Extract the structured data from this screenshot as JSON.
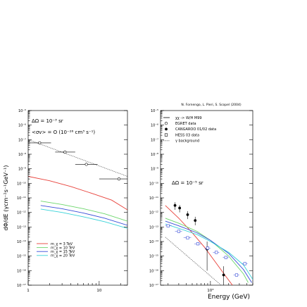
{
  "chart_data": [
    {
      "id": "left",
      "type": "line",
      "x_scale": "log",
      "y_scale": "log",
      "xlim": [
        1,
        25
      ],
      "ylim": [
        1e-17,
        1e-05
      ],
      "xticks": [
        {
          "v": 1,
          "label": "1"
        },
        {
          "v": 10,
          "label": "10"
        }
      ],
      "ylabel": "dΦ/dE (γcm⁻²s⁻¹GeV⁻¹)",
      "annotations": [
        "ΔΩ = 10⁻³ sr",
        "<σv> = O (10⁻²⁶ cm³ s⁻¹)"
      ],
      "legend_position": "bottom-left",
      "legend": [
        {
          "label": "m_χ = 3 TeV",
          "color": "#e8413a"
        },
        {
          "label": "m_χ = 10 TeV",
          "color": "#6cd66c"
        },
        {
          "label": "m_χ = 15 TeV",
          "color": "#3a4ed8"
        },
        {
          "label": "m_χ = 20 TeV",
          "color": "#38d2d8"
        }
      ],
      "series": [
        {
          "name": "m_χ = 3 TeV",
          "color": "#e8413a",
          "style": "solid",
          "points": [
            [
              1,
              3e-10
            ],
            [
              2,
              1.5e-10
            ],
            [
              4,
              6e-11
            ],
            [
              8,
              2e-11
            ],
            [
              15,
              7e-12
            ],
            [
              25,
              1.5e-12
            ]
          ]
        },
        {
          "name": "m_χ = 10 TeV",
          "color": "#6cd66c",
          "style": "solid",
          "points": [
            [
              1.5,
              6e-12
            ],
            [
              3,
              3.5e-12
            ],
            [
              6,
              1.8e-12
            ],
            [
              12,
              8e-13
            ],
            [
              25,
              2.5e-13
            ]
          ]
        },
        {
          "name": "m_χ = 15 TeV",
          "color": "#3a4ed8",
          "style": "solid",
          "points": [
            [
              1.5,
              3e-12
            ],
            [
              3,
              1.8e-12
            ],
            [
              6,
              9e-13
            ],
            [
              12,
              4e-13
            ],
            [
              25,
              1.3e-13
            ]
          ]
        },
        {
          "name": "m_χ = 20 TeV",
          "color": "#38d2d8",
          "style": "solid",
          "points": [
            [
              1.5,
              1.7e-12
            ],
            [
              3,
              1e-12
            ],
            [
              6,
              5e-13
            ],
            [
              12,
              2.3e-13
            ],
            [
              25,
              8e-14
            ]
          ]
        },
        {
          "name": "γ background",
          "color": "#555555",
          "style": "dotted",
          "points": [
            [
              1,
              1e-07
            ],
            [
              25,
              3e-10
            ]
          ]
        }
      ],
      "egret": [
        {
          "x": 1.45,
          "y": 6e-08,
          "xlo": 1.0,
          "xhi": 2.1
        },
        {
          "x": 3.3,
          "y": 1.4e-08,
          "xlo": 2.4,
          "xhi": 4.6
        },
        {
          "x": 6.6,
          "y": 2e-09,
          "xlo": 4.6,
          "xhi": 9.5
        },
        {
          "x": 19,
          "y": 2e-10,
          "xlo": 10,
          "xhi": 25
        }
      ]
    },
    {
      "id": "right",
      "type": "line",
      "x_scale": "log",
      "y_scale": "log",
      "xlim": [
        150,
        5000
      ],
      "ylim": [
        1e-17,
        1e-05
      ],
      "xticks": [
        {
          "v": 1000,
          "label": "10³"
        }
      ],
      "xlabel": "Energy (GeV)",
      "credit": "N. Fornengo, L. Pieri, S. Scopel (2004)",
      "annotations": [
        "ΔΩ = 10⁻⁵ sr"
      ],
      "legend_position": "top-left",
      "legend": [
        {
          "label": "χχ -> W/H M99",
          "marker": "line"
        },
        {
          "label": "EGRET data",
          "marker": "open-circle"
        },
        {
          "label": "CANGAROO 01/02 data",
          "marker": "filled-circle"
        },
        {
          "label": "HESS 03 data",
          "marker": "open-square"
        },
        {
          "label": "γ background",
          "marker": "dotted"
        }
      ],
      "series": [
        {
          "name": "3 TeV",
          "color": "#e8413a",
          "style": "solid",
          "points": [
            [
              180,
              3e-12
            ],
            [
              300,
              4e-13
            ],
            [
              500,
              4e-14
            ],
            [
              800,
              4e-15
            ],
            [
              1200,
              4e-16
            ],
            [
              1800,
              4e-17
            ],
            [
              2400,
              8e-18
            ]
          ]
        },
        {
          "name": "10 TeV",
          "color": "#6cd66c",
          "style": "solid",
          "points": [
            [
              180,
              4e-13
            ],
            [
              300,
              1.8e-13
            ],
            [
              600,
              5e-14
            ],
            [
              1000,
              1.2e-14
            ],
            [
              2000,
              1e-15
            ],
            [
              3500,
              6e-17
            ],
            [
              4200,
              1.5e-17
            ]
          ]
        },
        {
          "name": "15 TeV",
          "color": "#3a4ed8",
          "style": "solid",
          "points": [
            [
              180,
              2.5e-13
            ],
            [
              300,
              1.2e-13
            ],
            [
              600,
              4e-14
            ],
            [
              1000,
              1.2e-14
            ],
            [
              2000,
              1.5e-15
            ],
            [
              3500,
              1.2e-16
            ],
            [
              4800,
              1.5e-17
            ]
          ]
        },
        {
          "name": "20 TeV",
          "color": "#38d2d8",
          "style": "solid",
          "points": [
            [
              180,
              1.6e-13
            ],
            [
              300,
              8e-14
            ],
            [
              600,
              3e-14
            ],
            [
              1000,
              1e-14
            ],
            [
              2000,
              1.8e-15
            ],
            [
              3500,
              2.5e-16
            ],
            [
              5000,
              2.5e-17
            ]
          ]
        },
        {
          "name": "γ background",
          "color": "#555555",
          "style": "dotted",
          "points": [
            [
              180,
              2e-14
            ],
            [
              1500,
              1e-17
            ]
          ]
        }
      ],
      "cangaroo": [
        {
          "x": 260,
          "y": 3e-12,
          "ylo": 1.5e-12,
          "yhi": 5e-12
        },
        {
          "x": 310,
          "y": 2e-12,
          "ylo": 1e-12,
          "yhi": 3.2e-12
        },
        {
          "x": 420,
          "y": 7e-13,
          "ylo": 3.5e-13,
          "yhi": 1.2e-12
        },
        {
          "x": 560,
          "y": 2.8e-13,
          "ylo": 1.3e-13,
          "yhi": 5e-13
        },
        {
          "x": 880,
          "y": 3e-15,
          "ylo": 1e-16,
          "yhi": 1e-14
        },
        {
          "x": 1650,
          "y": 5e-17,
          "ylo": 1e-17,
          "yhi": 2e-16
        }
      ],
      "hess": [
        {
          "x": 200,
          "y": 1.2e-13,
          "xlo": 180,
          "xhi": 230
        },
        {
          "x": 300,
          "y": 5e-14,
          "xlo": 260,
          "xhi": 340
        },
        {
          "x": 420,
          "y": 1.8e-14,
          "xlo": 360,
          "xhi": 480
        },
        {
          "x": 620,
          "y": 7e-15,
          "xlo": 540,
          "xhi": 700
        },
        {
          "x": 900,
          "y": 3.5e-15,
          "xlo": 800,
          "xhi": 1000
        },
        {
          "x": 1250,
          "y": 1.8e-15,
          "xlo": 1100,
          "xhi": 1400
        },
        {
          "x": 1800,
          "y": 8e-16,
          "xlo": 1600,
          "xhi": 2000
        },
        {
          "x": 2700,
          "y": 5e-17,
          "xlo": 2400,
          "xhi": 3000
        },
        {
          "x": 3700,
          "y": 3e-16,
          "xlo": 3300,
          "xhi": 4100
        }
      ]
    }
  ]
}
